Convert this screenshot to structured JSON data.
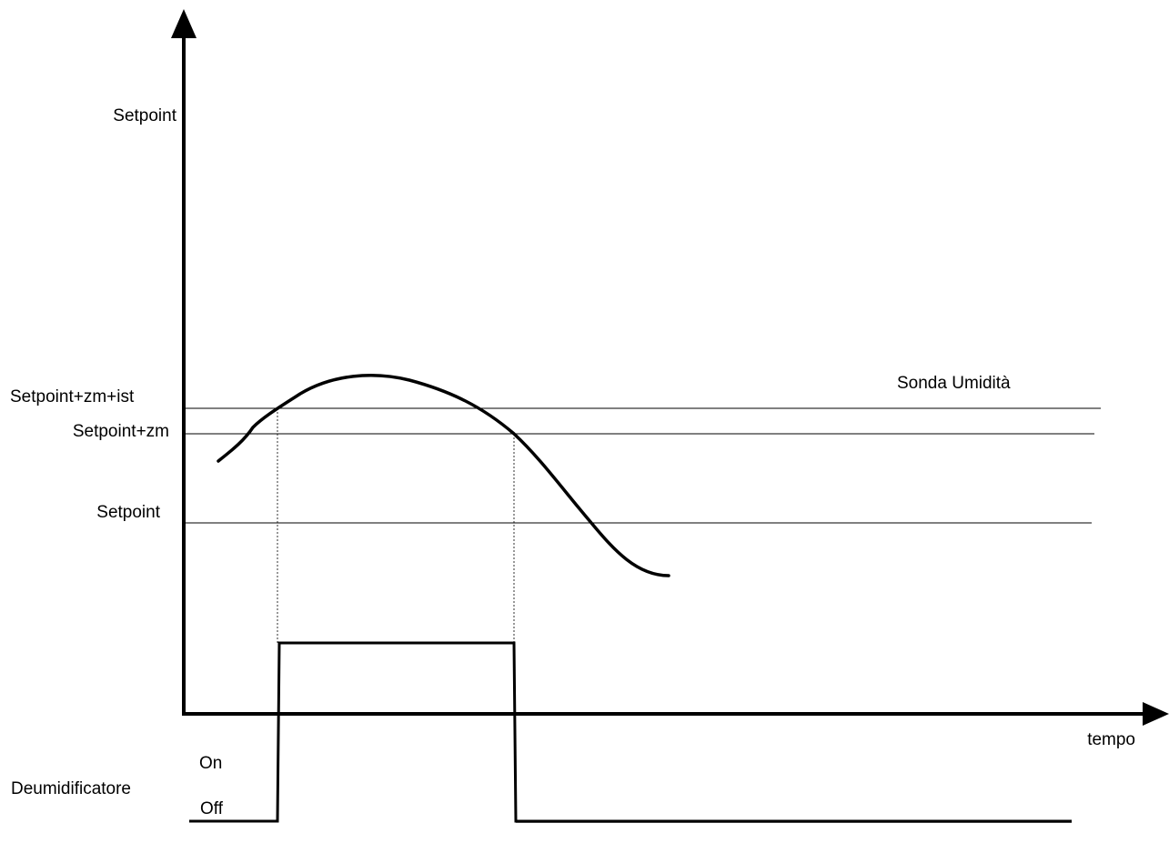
{
  "diagram": {
    "labels": {
      "setpoint_top": "Setpoint",
      "setpoint_zm_ist": "Setpoint+zm+ist",
      "setpoint_zm": "Setpoint+zm",
      "setpoint": "Setpoint",
      "probe_name": "Sonda Umidità",
      "time_axis": "tempo",
      "dehumidifier": "Deumidificatore",
      "state_on": "On",
      "state_off": "Off"
    },
    "threshold_lines": [
      "setpoint_zm_ist",
      "setpoint_zm",
      "setpoint"
    ],
    "output_signal": {
      "name": "dehumidifier",
      "states": [
        "off",
        "on",
        "off"
      ]
    }
  }
}
